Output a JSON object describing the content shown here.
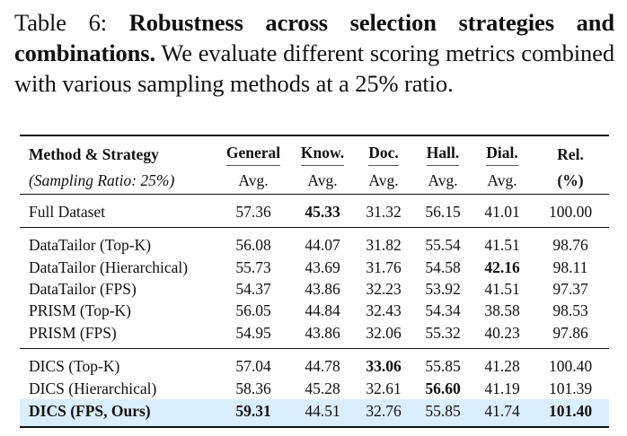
{
  "caption": {
    "prefix": "Table 6:",
    "bold": "Robustness across selection strategies and combinations.",
    "rest": "We evaluate different scoring metrics combined with various sampling methods at a 25% ratio."
  },
  "header": {
    "col0": "Method & Strategy",
    "col0_sub": "(Sampling Ratio: 25%)",
    "cols": [
      "General",
      "Know.",
      "Doc.",
      "Hall.",
      "Dial.",
      "Rel."
    ],
    "subs": [
      "Avg.",
      "Avg.",
      "Avg.",
      "Avg.",
      "Avg.",
      "(%)"
    ]
  },
  "rows": [
    {
      "name": "Full Dataset",
      "values": [
        "57.36",
        "45.33",
        "31.32",
        "56.15",
        "41.01",
        "100.00"
      ]
    },
    {
      "name": "DataTailor (Top-K)",
      "values": [
        "56.08",
        "44.07",
        "31.82",
        "55.54",
        "41.51",
        "98.76"
      ]
    },
    {
      "name": "DataTailor (Hierarchical)",
      "values": [
        "55.73",
        "43.69",
        "31.76",
        "54.58",
        "42.16",
        "98.11"
      ]
    },
    {
      "name": "DataTailor (FPS)",
      "values": [
        "54.37",
        "43.86",
        "32.23",
        "53.92",
        "41.51",
        "97.37"
      ]
    },
    {
      "name": "PRISM (Top-K)",
      "values": [
        "56.05",
        "44.84",
        "32.43",
        "54.34",
        "38.58",
        "98.53"
      ]
    },
    {
      "name": "PRISM (FPS)",
      "values": [
        "54.95",
        "43.86",
        "32.06",
        "55.32",
        "40.23",
        "97.86"
      ]
    },
    {
      "name": "DICS (Top-K)",
      "values": [
        "57.04",
        "44.78",
        "33.06",
        "55.85",
        "41.28",
        "100.40"
      ]
    },
    {
      "name": "DICS (Hierarchical)",
      "values": [
        "58.36",
        "45.28",
        "32.61",
        "56.60",
        "41.19",
        "101.39"
      ]
    },
    {
      "name": "DICS (FPS, Ours)",
      "values": [
        "59.31",
        "44.51",
        "32.76",
        "55.85",
        "41.74",
        "101.40"
      ]
    }
  ]
}
